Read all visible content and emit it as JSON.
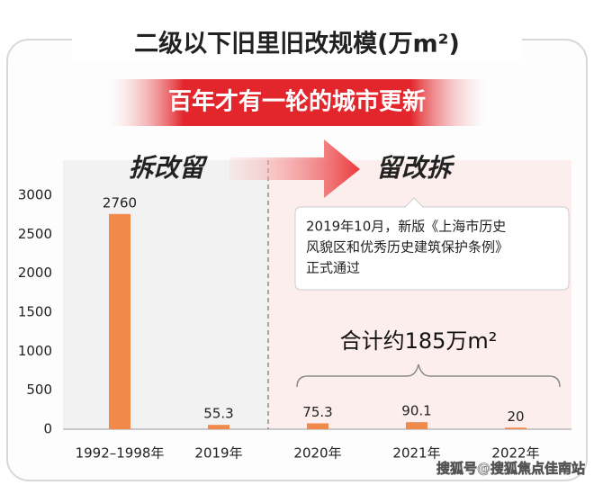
{
  "chart_data": {
    "type": "bar",
    "title": "二级以下旧里旧改规模(万m²)",
    "subtitle": "百年才有一轮的城市更新",
    "phase_labels": [
      "拆改留",
      "留改拆"
    ],
    "annotation": [
      "2019年10月，新版《上海市历史",
      "风貌区和优秀历史建筑保护条例》",
      "正式通过"
    ],
    "total_label": "合计约185万m²",
    "watermark": "搜狐号@搜狐焦点佳南站",
    "categories": [
      "1992–1998年",
      "2019年",
      "2020年",
      "2021年",
      "2022年"
    ],
    "values": [
      2760,
      55.3,
      75.3,
      90.1,
      20
    ],
    "color": "#f0894a",
    "ylim": [
      0,
      3450
    ],
    "yticks": [
      0,
      500,
      1000,
      1500,
      2000,
      2500,
      3000
    ],
    "grid": false
  }
}
